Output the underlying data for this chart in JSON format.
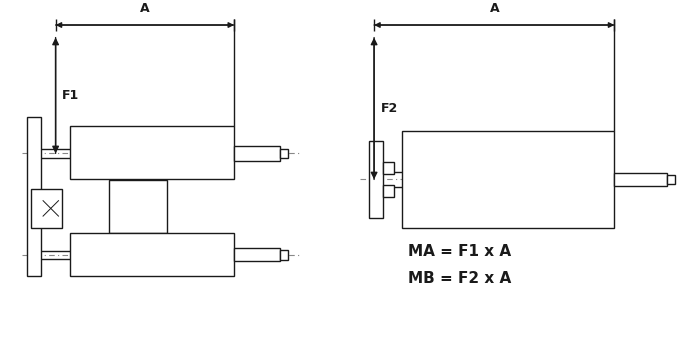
{
  "bg_color": "#ffffff",
  "line_color": "#1a1a1a",
  "dash_color": "#888888",
  "fig_width": 6.98,
  "fig_height": 3.42,
  "formula1": "MA = F1 x A",
  "formula2": "MB = F2 x A",
  "label_A": "A",
  "label_F1": "F1",
  "label_F2": "F2"
}
